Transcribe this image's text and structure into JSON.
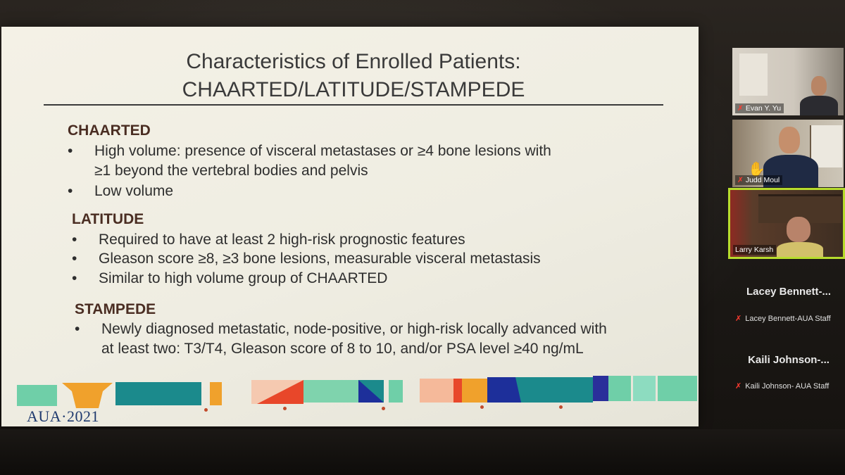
{
  "slide": {
    "title_line1": "Characteristics of Enrolled Patients:",
    "title_line2": "CHAARTED/LATITUDE/STAMPEDE",
    "sections": [
      {
        "heading": "CHAARTED",
        "bullets": [
          "High volume: presence of visceral metastases or ≥4 bone lesions with",
          "≥1 beyond the vertebral bodies and pelvis",
          "Low volume"
        ]
      },
      {
        "heading": "LATITUDE",
        "bullets": [
          "Required to have at least 2 high-risk prognostic features",
          "Gleason score ≥8, ≥3 bone lesions, measurable visceral metastasis",
          "Similar to high volume group of CHAARTED"
        ]
      },
      {
        "heading": "STAMPEDE",
        "bullets": [
          "Newly diagnosed metastatic, node-positive, or high-risk locally advanced with",
          "at least two: T3/T4, Gleason score of 8 to 10, and/or PSA level ≥40 ng/mL"
        ]
      }
    ],
    "bullet_symbol": "•",
    "logo": "AUA·2021",
    "colors": {
      "teal": "#1b8a8c",
      "mint": "#6fcfa8",
      "orange": "#f0a12c",
      "red_orange": "#e8472a",
      "navy": "#1d2f9a",
      "peach": "#f5b99a",
      "heading": "#4a2d22"
    }
  },
  "participants": [
    {
      "name": "Evan Y. Yu",
      "muted": true
    },
    {
      "name": "Judd Moul",
      "muted": true
    },
    {
      "name": "Larry Karsh",
      "muted": false,
      "active_speaker": true
    },
    {
      "name_short": "Lacey  Bennett-...",
      "name": "Lacey Bennett-AUA Staff",
      "muted": true
    },
    {
      "name_short": "Kaili  Johnson-...",
      "name": "Kaili Johnson- AUA Staff",
      "muted": true
    }
  ],
  "icons": {
    "muted_mic": "mic-muted-icon",
    "raised_hand": "raised-hand-icon"
  }
}
